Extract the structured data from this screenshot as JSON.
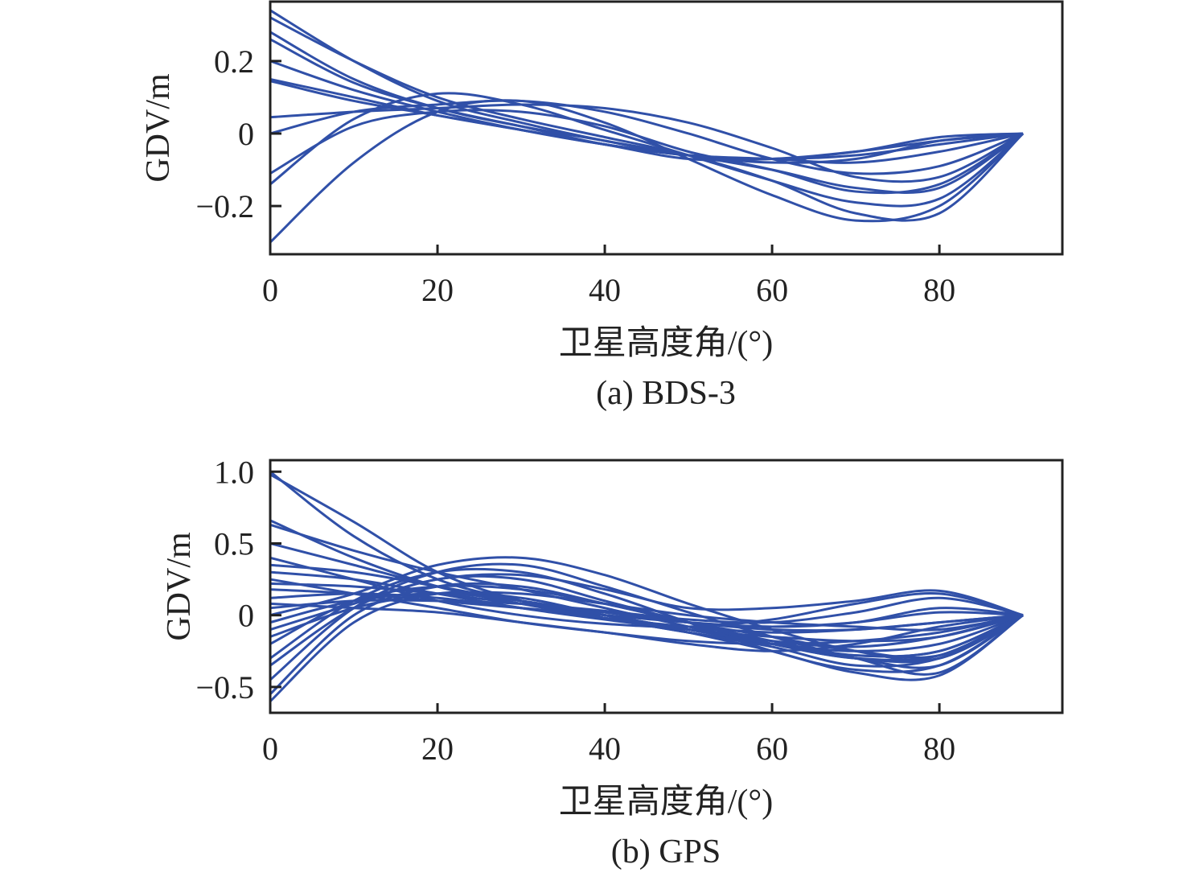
{
  "chart_data": [
    {
      "type": "line",
      "caption": "(a) BDS-3",
      "xlabel": "卫星高度角/(°)",
      "ylabel": "GDV/m",
      "xlim": [
        0,
        94.7
      ],
      "ylim": [
        -0.333,
        0.364
      ],
      "xticks": [
        0,
        20,
        40,
        60,
        80
      ],
      "xtick_labels": [
        "0",
        "20",
        "40",
        "60",
        "80"
      ],
      "yticks": [
        -0.2,
        0,
        0.2
      ],
      "ytick_labels": [
        "−0.2",
        "0",
        "0.2"
      ],
      "grid": false,
      "line_color": "#3050a8",
      "x": [
        0,
        10,
        20,
        30,
        40,
        50,
        60,
        70,
        80,
        90
      ],
      "series": [
        {
          "values": [
            0.34,
            0.2,
            0.09,
            0.03,
            -0.02,
            -0.06,
            -0.07,
            -0.05,
            -0.01,
            0
          ]
        },
        {
          "values": [
            0.32,
            0.2,
            0.1,
            0.04,
            -0.01,
            -0.06,
            -0.13,
            -0.22,
            -0.22,
            0
          ]
        },
        {
          "values": [
            0.28,
            0.15,
            0.07,
            0.02,
            -0.02,
            -0.06,
            -0.1,
            -0.15,
            -0.15,
            0
          ]
        },
        {
          "values": [
            0.26,
            0.14,
            0.07,
            0.02,
            -0.03,
            -0.06,
            -0.08,
            -0.07,
            -0.02,
            0
          ]
        },
        {
          "values": [
            0.2,
            0.12,
            0.06,
            0.01,
            -0.03,
            -0.06,
            -0.07,
            -0.06,
            -0.03,
            0
          ]
        },
        {
          "values": [
            0.15,
            0.1,
            0.05,
            0.01,
            -0.03,
            -0.07,
            -0.07,
            -0.05,
            -0.02,
            0
          ]
        },
        {
          "values": [
            0.145,
            0.09,
            0.05,
            0.01,
            -0.03,
            -0.06,
            -0.07,
            -0.08,
            -0.05,
            0
          ]
        },
        {
          "values": [
            0.045,
            0.06,
            0.07,
            0.08,
            0.07,
            0.03,
            -0.04,
            -0.12,
            -0.12,
            0
          ]
        },
        {
          "values": [
            0.0,
            0.06,
            0.08,
            0.09,
            0.06,
            0.0,
            -0.07,
            -0.11,
            -0.09,
            0
          ]
        },
        {
          "values": [
            -0.11,
            0.02,
            0.06,
            0.06,
            0.02,
            -0.05,
            -0.1,
            -0.16,
            -0.14,
            0
          ]
        },
        {
          "values": [
            -0.14,
            0.04,
            0.11,
            0.08,
            0.01,
            -0.06,
            -0.13,
            -0.19,
            -0.18,
            0
          ]
        },
        {
          "values": [
            -0.3,
            -0.08,
            0.06,
            0.09,
            0.03,
            -0.07,
            -0.17,
            -0.24,
            -0.2,
            0
          ]
        }
      ]
    },
    {
      "type": "line",
      "caption": "(b) GPS",
      "xlabel": "卫星高度角/(°)",
      "ylabel": "GDV/m",
      "xlim": [
        0,
        94.7
      ],
      "ylim": [
        -0.68,
        1.08
      ],
      "xticks": [
        0,
        20,
        40,
        60,
        80
      ],
      "xtick_labels": [
        "0",
        "20",
        "40",
        "60",
        "80"
      ],
      "yticks": [
        -0.5,
        0,
        0.5,
        1.0
      ],
      "ytick_labels": [
        "−0.5",
        "0",
        "0.5",
        "1.0"
      ],
      "grid": false,
      "line_color": "#3050a8",
      "x": [
        0,
        10,
        20,
        30,
        40,
        50,
        60,
        70,
        80,
        90
      ],
      "series": [
        {
          "values": [
            1.0,
            0.55,
            0.25,
            0.1,
            0.0,
            -0.1,
            -0.18,
            -0.22,
            -0.15,
            0
          ]
        },
        {
          "values": [
            0.98,
            0.65,
            0.3,
            0.1,
            -0.02,
            -0.12,
            -0.22,
            -0.35,
            -0.3,
            0
          ]
        },
        {
          "values": [
            0.66,
            0.4,
            0.2,
            0.08,
            -0.02,
            -0.12,
            -0.2,
            -0.25,
            -0.2,
            0
          ]
        },
        {
          "values": [
            0.63,
            0.45,
            0.3,
            0.18,
            0.05,
            -0.08,
            -0.2,
            -0.3,
            -0.28,
            0
          ]
        },
        {
          "values": [
            0.5,
            0.35,
            0.2,
            0.1,
            0.0,
            -0.1,
            -0.2,
            -0.28,
            -0.25,
            0
          ]
        },
        {
          "values": [
            0.35,
            0.3,
            0.2,
            0.1,
            0.02,
            -0.05,
            -0.08,
            -0.05,
            0.05,
            0
          ]
        },
        {
          "values": [
            0.3,
            0.25,
            0.15,
            0.05,
            -0.03,
            -0.1,
            -0.15,
            -0.18,
            -0.15,
            0
          ]
        },
        {
          "values": [
            0.22,
            0.2,
            0.15,
            0.08,
            0.02,
            -0.05,
            -0.1,
            -0.1,
            -0.05,
            0
          ]
        },
        {
          "values": [
            0.18,
            0.15,
            0.1,
            0.05,
            0.0,
            -0.05,
            -0.08,
            -0.05,
            0.02,
            0
          ]
        },
        {
          "values": [
            0.12,
            0.15,
            0.12,
            0.05,
            -0.02,
            -0.08,
            -0.12,
            -0.1,
            -0.05,
            0
          ]
        },
        {
          "values": [
            0.05,
            0.1,
            0.1,
            0.08,
            0.03,
            -0.03,
            -0.05,
            0.02,
            0.12,
            0
          ]
        },
        {
          "values": [
            0.0,
            0.15,
            0.35,
            0.4,
            0.28,
            0.08,
            -0.1,
            -0.25,
            -0.3,
            0
          ]
        },
        {
          "values": [
            -0.05,
            0.1,
            0.15,
            0.1,
            0.0,
            -0.1,
            -0.2,
            -0.3,
            -0.35,
            0
          ]
        },
        {
          "values": [
            -0.1,
            0.08,
            0.25,
            0.28,
            0.18,
            0.05,
            0.05,
            0.1,
            0.17,
            0
          ]
        },
        {
          "values": [
            -0.15,
            0.05,
            0.15,
            0.15,
            0.08,
            0.0,
            -0.05,
            -0.08,
            -0.1,
            0
          ]
        },
        {
          "values": [
            -0.2,
            0.1,
            0.2,
            0.18,
            0.08,
            -0.05,
            -0.15,
            -0.25,
            -0.28,
            0
          ]
        },
        {
          "values": [
            -0.3,
            0.1,
            0.3,
            0.3,
            0.15,
            -0.05,
            -0.25,
            -0.38,
            -0.35,
            0
          ]
        },
        {
          "values": [
            -0.35,
            0.05,
            0.25,
            0.25,
            0.1,
            -0.05,
            -0.2,
            -0.3,
            -0.3,
            0
          ]
        },
        {
          "values": [
            -0.45,
            0.05,
            0.3,
            0.35,
            0.2,
            0.02,
            -0.15,
            -0.3,
            -0.4,
            0
          ]
        },
        {
          "values": [
            -0.55,
            0.0,
            0.2,
            0.2,
            0.08,
            -0.05,
            -0.18,
            -0.28,
            -0.25,
            0
          ]
        },
        {
          "values": [
            -0.6,
            -0.05,
            0.15,
            0.12,
            0.0,
            -0.12,
            -0.25,
            -0.4,
            -0.42,
            0
          ]
        },
        {
          "values": [
            0.08,
            0.05,
            0.02,
            -0.05,
            -0.12,
            -0.2,
            -0.25,
            -0.2,
            -0.08,
            0
          ]
        },
        {
          "values": [
            0.25,
            0.15,
            0.05,
            -0.05,
            -0.12,
            -0.18,
            -0.2,
            -0.18,
            -0.12,
            0
          ]
        },
        {
          "values": [
            0.4,
            0.25,
            0.1,
            0.0,
            -0.06,
            -0.08,
            -0.03,
            0.08,
            0.15,
            0
          ]
        }
      ]
    }
  ]
}
